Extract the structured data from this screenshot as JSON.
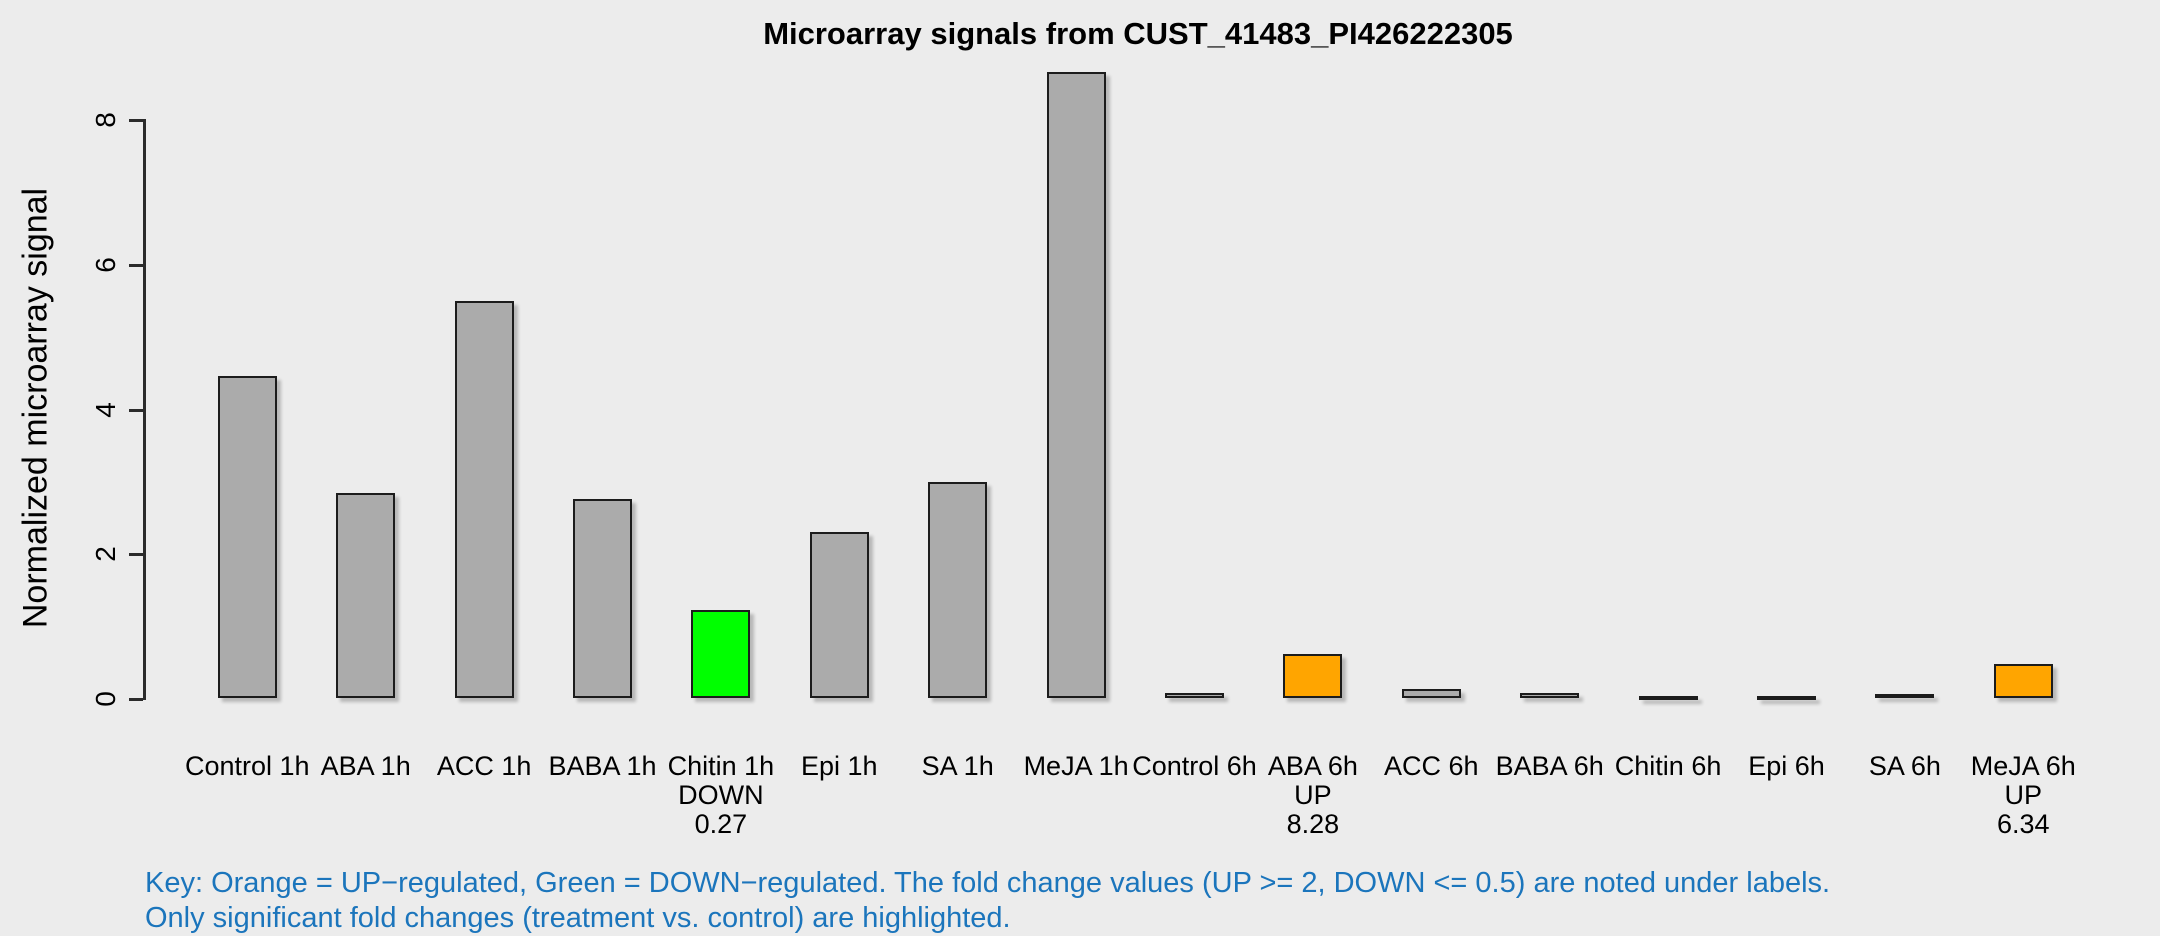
{
  "chart_data": {
    "type": "bar",
    "title": "Microarray signals from CUST_41483_PI426222305",
    "xlabel": "",
    "ylabel": "Normalized microarray signal",
    "yticks": [
      0,
      2,
      4,
      6,
      8
    ],
    "ylim": [
      0,
      8.8
    ],
    "grid": false,
    "legend_position": "none",
    "categories": [
      "Control 1h",
      "ABA 1h",
      "ACC 1h",
      "BABA 1h",
      "Chitin 1h",
      "Epi 1h",
      "SA 1h",
      "MeJA 1h",
      "Control 6h",
      "ABA 6h",
      "ACC 6h",
      "BABA 6h",
      "Chitin 6h",
      "Epi 6h",
      "SA 6h",
      "MeJA 6h"
    ],
    "values": [
      4.45,
      2.83,
      5.49,
      2.75,
      1.22,
      2.29,
      2.99,
      8.66,
      0.07,
      0.61,
      0.12,
      0.07,
      0.03,
      0.03,
      0.06,
      0.47
    ],
    "bars": [
      {
        "label": "Control 1h",
        "value": 4.45,
        "color_key": "gray"
      },
      {
        "label": "ABA 1h",
        "value": 2.83,
        "color_key": "gray"
      },
      {
        "label": "ACC 1h",
        "value": 5.49,
        "color_key": "gray"
      },
      {
        "label": "BABA 1h",
        "value": 2.75,
        "color_key": "gray"
      },
      {
        "label": "Chitin 1h",
        "value": 1.22,
        "color_key": "green",
        "regulation": "DOWN",
        "fold_change": "0.27"
      },
      {
        "label": "Epi 1h",
        "value": 2.29,
        "color_key": "gray"
      },
      {
        "label": "SA 1h",
        "value": 2.99,
        "color_key": "gray"
      },
      {
        "label": "MeJA 1h",
        "value": 8.66,
        "color_key": "gray"
      },
      {
        "label": "Control 6h",
        "value": 0.07,
        "color_key": "gray"
      },
      {
        "label": "ABA 6h",
        "value": 0.61,
        "color_key": "orange",
        "regulation": "UP",
        "fold_change": "8.28"
      },
      {
        "label": "ACC 6h",
        "value": 0.12,
        "color_key": "gray"
      },
      {
        "label": "BABA 6h",
        "value": 0.07,
        "color_key": "gray"
      },
      {
        "label": "Chitin 6h",
        "value": 0.03,
        "color_key": "gray"
      },
      {
        "label": "Epi 6h",
        "value": 0.03,
        "color_key": "gray"
      },
      {
        "label": "SA 6h",
        "value": 0.06,
        "color_key": "gray"
      },
      {
        "label": "MeJA 6h",
        "value": 0.47,
        "color_key": "orange",
        "regulation": "UP",
        "fold_change": "6.34"
      }
    ],
    "colors": {
      "gray": "#ABABAB",
      "green": "#00FF00",
      "orange": "#FFA500",
      "background": "#ECECEC",
      "axis": "#2b2b2b",
      "key_text": "#1B75BC"
    },
    "key": {
      "line1": "Key: Orange = UP−regulated, Green = DOWN−regulated. The fold change values (UP >= 2, DOWN <= 0.5) are noted under labels.",
      "line2": "Only significant fold changes (treatment vs. control) are highlighted."
    }
  }
}
